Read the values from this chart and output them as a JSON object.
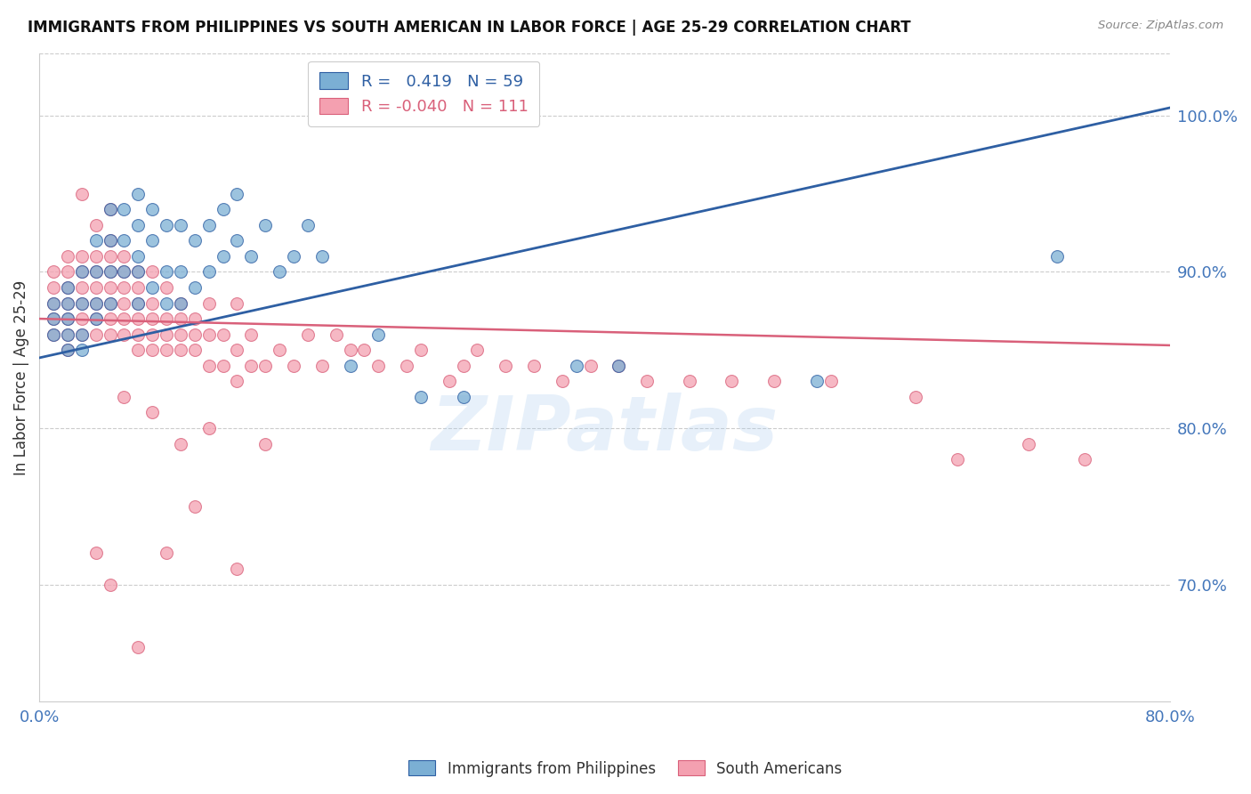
{
  "title": "IMMIGRANTS FROM PHILIPPINES VS SOUTH AMERICAN IN LABOR FORCE | AGE 25-29 CORRELATION CHART",
  "source_text": "Source: ZipAtlas.com",
  "ylabel": "In Labor Force | Age 25-29",
  "xlim": [
    0.0,
    0.8
  ],
  "ylim": [
    0.625,
    1.04
  ],
  "yticks": [
    0.7,
    0.8,
    0.9,
    1.0
  ],
  "ytick_labels": [
    "70.0%",
    "80.0%",
    "90.0%",
    "100.0%"
  ],
  "xticks": [
    0.0,
    0.1,
    0.2,
    0.3,
    0.4,
    0.5,
    0.6,
    0.7,
    0.8
  ],
  "xtick_labels": [
    "0.0%",
    "",
    "",
    "",
    "",
    "",
    "",
    "",
    "80.0%"
  ],
  "blue_R": "0.419",
  "blue_N": "59",
  "pink_R": "-0.040",
  "pink_N": "111",
  "blue_color": "#7BAFD4",
  "pink_color": "#F4A0B0",
  "blue_line_color": "#2E5FA3",
  "pink_line_color": "#D9607A",
  "axis_color": "#4477BB",
  "grid_color": "#CCCCCC",
  "legend_label_blue": "Immigrants from Philippines",
  "legend_label_pink": "South Americans",
  "blue_scatter_x": [
    0.01,
    0.01,
    0.01,
    0.02,
    0.02,
    0.02,
    0.02,
    0.02,
    0.03,
    0.03,
    0.03,
    0.03,
    0.04,
    0.04,
    0.04,
    0.04,
    0.05,
    0.05,
    0.05,
    0.05,
    0.06,
    0.06,
    0.06,
    0.07,
    0.07,
    0.07,
    0.07,
    0.07,
    0.08,
    0.08,
    0.08,
    0.09,
    0.09,
    0.09,
    0.1,
    0.1,
    0.1,
    0.11,
    0.11,
    0.12,
    0.12,
    0.13,
    0.13,
    0.14,
    0.14,
    0.15,
    0.16,
    0.17,
    0.18,
    0.19,
    0.2,
    0.22,
    0.24,
    0.27,
    0.3,
    0.38,
    0.41,
    0.55,
    0.72
  ],
  "blue_scatter_y": [
    0.86,
    0.87,
    0.88,
    0.85,
    0.86,
    0.87,
    0.88,
    0.89,
    0.85,
    0.86,
    0.88,
    0.9,
    0.87,
    0.88,
    0.9,
    0.92,
    0.88,
    0.9,
    0.92,
    0.94,
    0.9,
    0.92,
    0.94,
    0.88,
    0.9,
    0.91,
    0.93,
    0.95,
    0.89,
    0.92,
    0.94,
    0.88,
    0.9,
    0.93,
    0.88,
    0.9,
    0.93,
    0.89,
    0.92,
    0.9,
    0.93,
    0.91,
    0.94,
    0.92,
    0.95,
    0.91,
    0.93,
    0.9,
    0.91,
    0.93,
    0.91,
    0.84,
    0.86,
    0.82,
    0.82,
    0.84,
    0.84,
    0.83,
    0.91
  ],
  "pink_scatter_x": [
    0.01,
    0.01,
    0.01,
    0.01,
    0.01,
    0.02,
    0.02,
    0.02,
    0.02,
    0.02,
    0.02,
    0.02,
    0.03,
    0.03,
    0.03,
    0.03,
    0.03,
    0.03,
    0.03,
    0.04,
    0.04,
    0.04,
    0.04,
    0.04,
    0.04,
    0.04,
    0.05,
    0.05,
    0.05,
    0.05,
    0.05,
    0.05,
    0.05,
    0.05,
    0.06,
    0.06,
    0.06,
    0.06,
    0.06,
    0.06,
    0.07,
    0.07,
    0.07,
    0.07,
    0.07,
    0.07,
    0.08,
    0.08,
    0.08,
    0.08,
    0.08,
    0.09,
    0.09,
    0.09,
    0.09,
    0.1,
    0.1,
    0.1,
    0.1,
    0.11,
    0.11,
    0.11,
    0.12,
    0.12,
    0.12,
    0.13,
    0.13,
    0.14,
    0.14,
    0.14,
    0.15,
    0.15,
    0.16,
    0.17,
    0.18,
    0.19,
    0.2,
    0.21,
    0.22,
    0.23,
    0.24,
    0.26,
    0.27,
    0.29,
    0.3,
    0.31,
    0.33,
    0.35,
    0.37,
    0.39,
    0.41,
    0.43,
    0.46,
    0.49,
    0.52,
    0.56,
    0.62,
    0.65,
    0.7,
    0.74,
    0.1,
    0.12,
    0.08,
    0.06,
    0.16,
    0.14,
    0.09,
    0.05,
    0.04,
    0.11,
    0.07
  ],
  "pink_scatter_y": [
    0.86,
    0.87,
    0.88,
    0.89,
    0.9,
    0.85,
    0.86,
    0.87,
    0.88,
    0.89,
    0.9,
    0.91,
    0.86,
    0.87,
    0.88,
    0.89,
    0.9,
    0.91,
    0.95,
    0.86,
    0.87,
    0.88,
    0.89,
    0.9,
    0.91,
    0.93,
    0.86,
    0.87,
    0.88,
    0.89,
    0.9,
    0.91,
    0.92,
    0.94,
    0.86,
    0.87,
    0.88,
    0.89,
    0.9,
    0.91,
    0.85,
    0.86,
    0.87,
    0.88,
    0.89,
    0.9,
    0.85,
    0.86,
    0.87,
    0.88,
    0.9,
    0.85,
    0.86,
    0.87,
    0.89,
    0.85,
    0.86,
    0.87,
    0.88,
    0.85,
    0.86,
    0.87,
    0.84,
    0.86,
    0.88,
    0.84,
    0.86,
    0.83,
    0.85,
    0.88,
    0.84,
    0.86,
    0.84,
    0.85,
    0.84,
    0.86,
    0.84,
    0.86,
    0.85,
    0.85,
    0.84,
    0.84,
    0.85,
    0.83,
    0.84,
    0.85,
    0.84,
    0.84,
    0.83,
    0.84,
    0.84,
    0.83,
    0.83,
    0.83,
    0.83,
    0.83,
    0.82,
    0.78,
    0.79,
    0.78,
    0.79,
    0.8,
    0.81,
    0.82,
    0.79,
    0.71,
    0.72,
    0.7,
    0.72,
    0.75,
    0.66
  ],
  "watermark_text": "ZIPatlas",
  "bg_color": "#FFFFFF",
  "blue_line_x0": 0.0,
  "blue_line_y0": 0.845,
  "blue_line_x1": 0.8,
  "blue_line_y1": 1.005,
  "pink_line_x0": 0.0,
  "pink_line_y0": 0.87,
  "pink_line_x1": 0.8,
  "pink_line_y1": 0.853
}
